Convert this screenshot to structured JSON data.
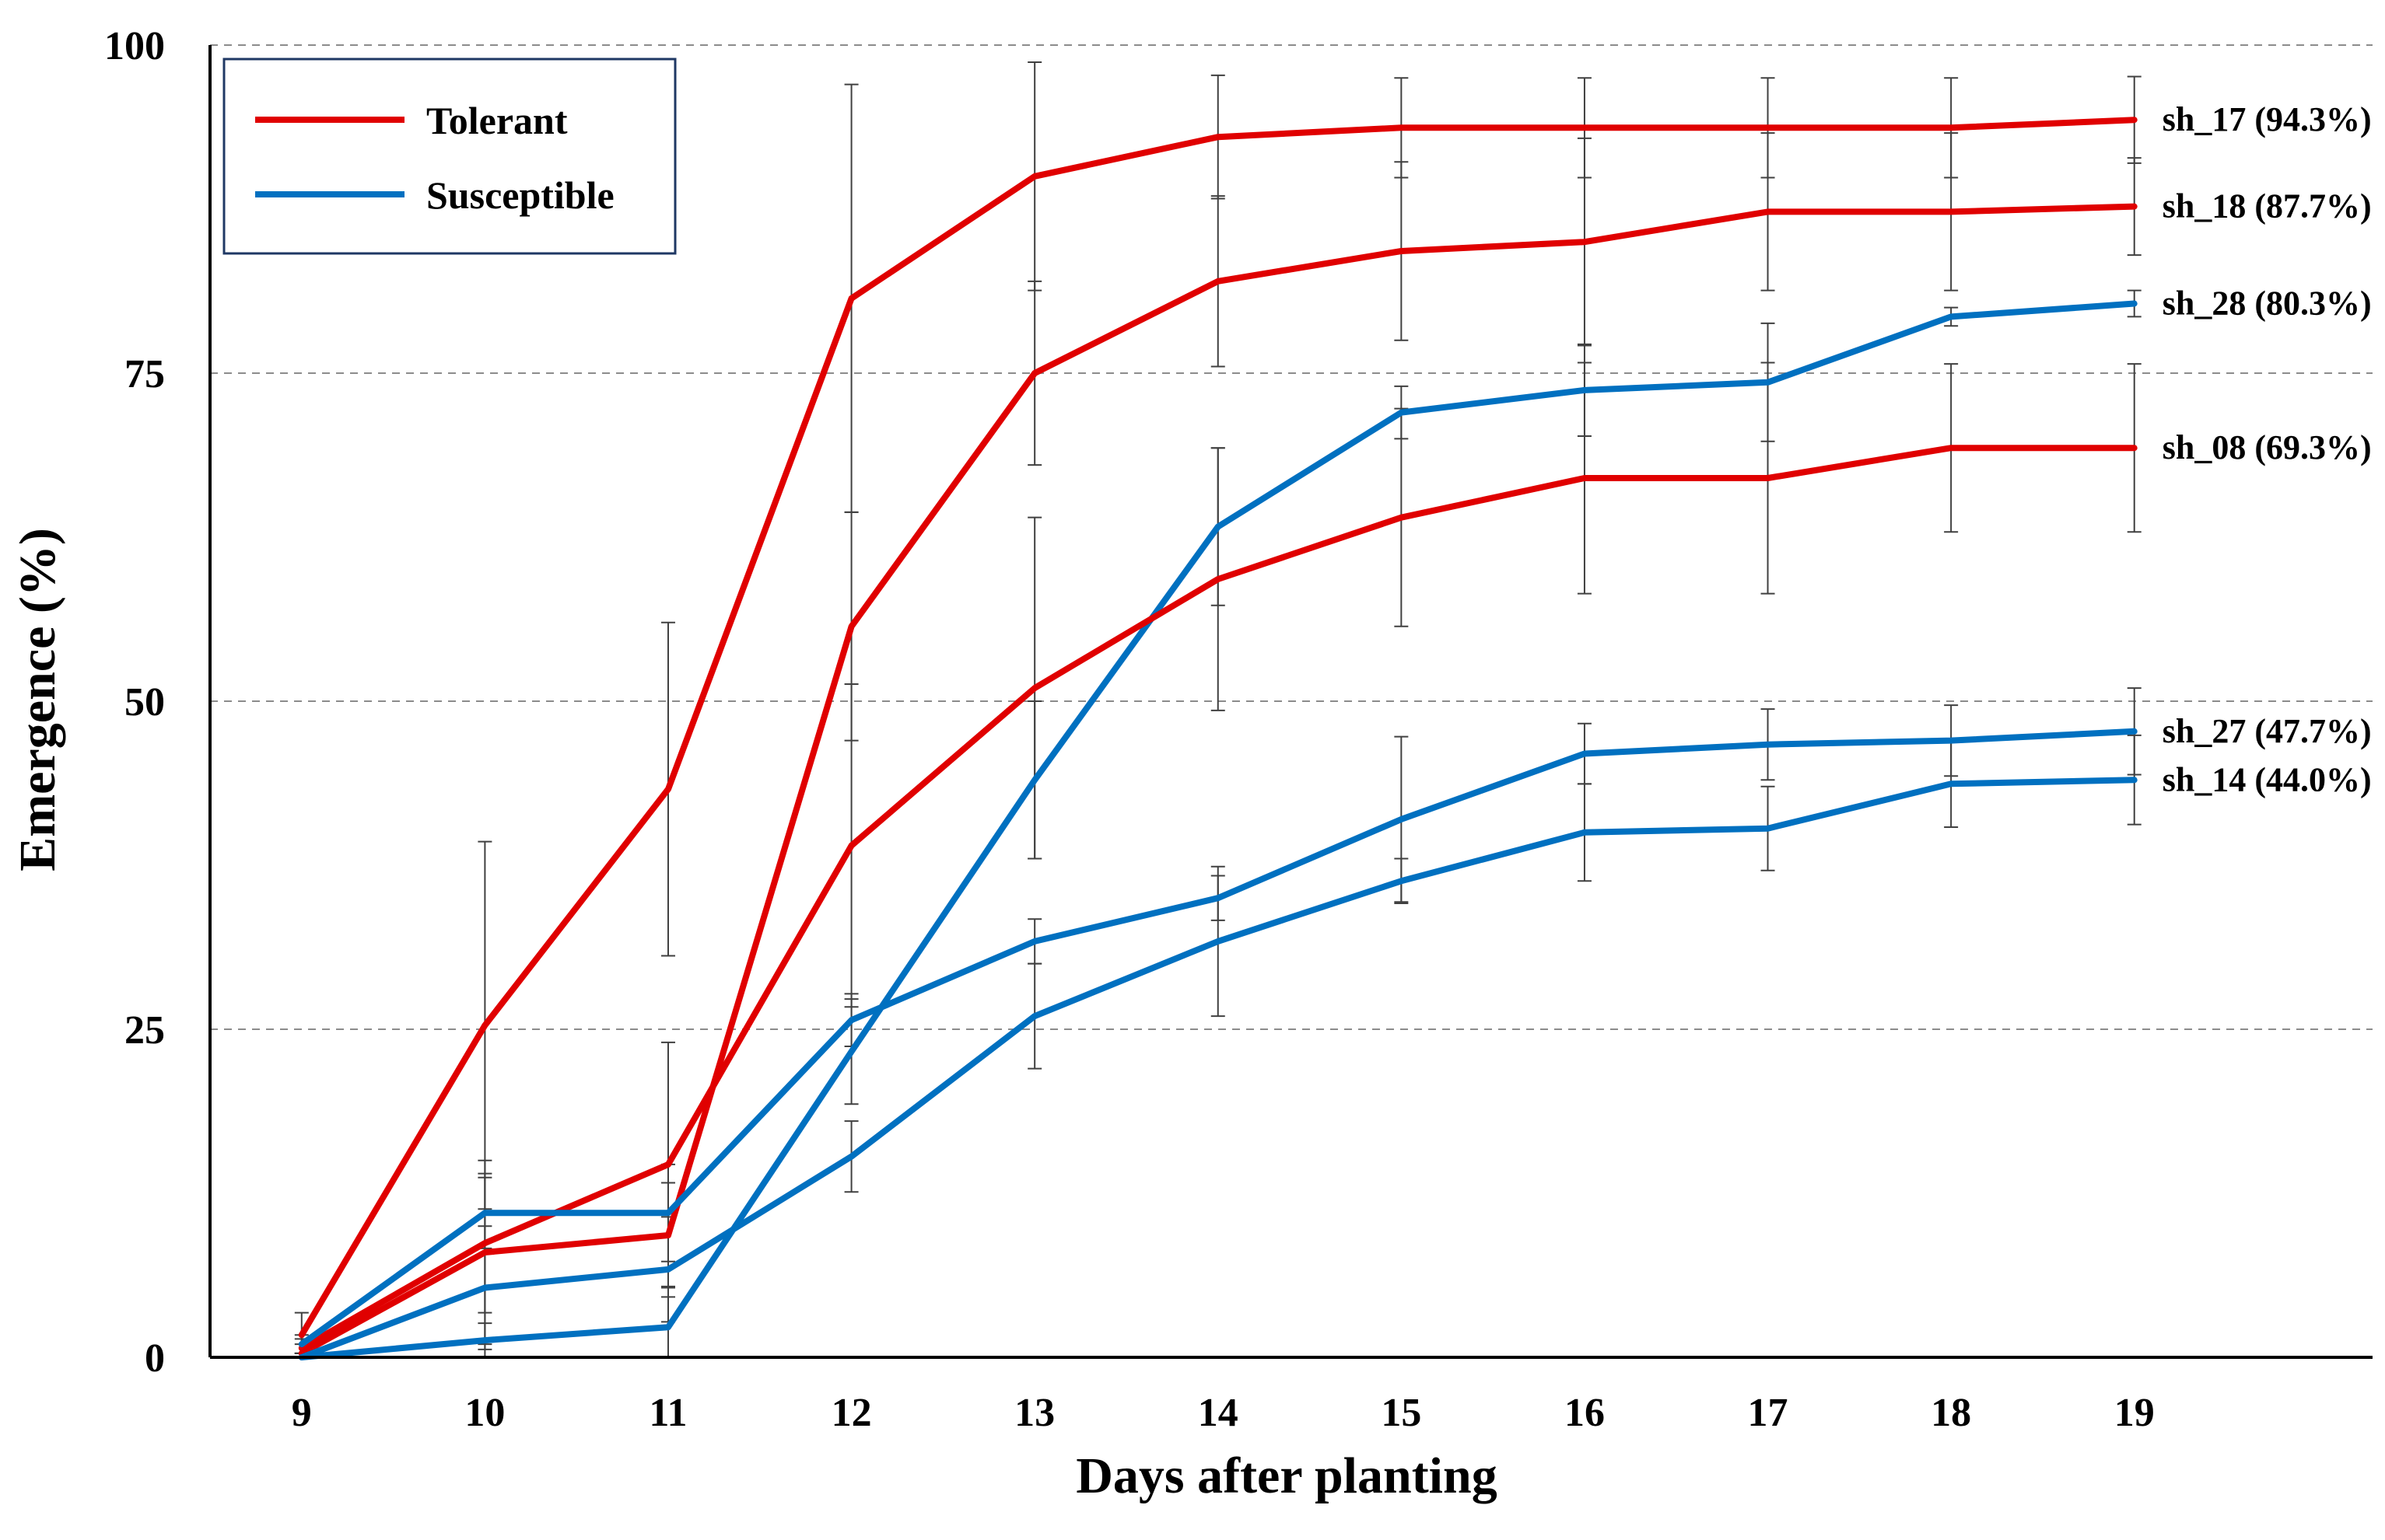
{
  "chart_data": {
    "type": "line",
    "title": "",
    "xlabel": "Days after planting",
    "ylabel": "Emergence (%)",
    "x": [
      9,
      10,
      11,
      12,
      13,
      14,
      15,
      16,
      17,
      18,
      19
    ],
    "x_tick_labels": [
      "9",
      "10",
      "11",
      "12",
      "13",
      "14",
      "15",
      "16",
      "17",
      "18",
      "19"
    ],
    "xlim": [
      8.5,
      20.3
    ],
    "ylim": [
      0,
      100
    ],
    "y_ticks": [
      0,
      25,
      50,
      75,
      100
    ],
    "y_tick_labels": [
      "0",
      "25",
      "50",
      "75",
      "100"
    ],
    "grid": "horizontal dashed",
    "legend_position": "top-left",
    "legend": [
      {
        "label": "Tolerant",
        "color": "#e00000"
      },
      {
        "label": "Susceptible",
        "color": "#0070c0"
      }
    ],
    "series": [
      {
        "name": "sh_17",
        "group": "Tolerant",
        "color": "#e00000",
        "end_label": "sh_17 (94.3%)",
        "values": [
          1.7,
          25.3,
          43.3,
          80.7,
          90.0,
          93.0,
          93.7,
          93.7,
          93.7,
          93.7,
          94.3
        ],
        "errors": [
          1.7,
          14.0,
          12.7,
          16.3,
          8.7,
          4.7,
          3.8,
          3.8,
          3.8,
          3.8,
          3.3
        ]
      },
      {
        "name": "sh_18",
        "group": "Tolerant",
        "color": "#e00000",
        "end_label": "sh_18 (87.7%)",
        "values": [
          0.3,
          8.0,
          9.3,
          55.7,
          75.0,
          82.0,
          84.3,
          85.0,
          87.3,
          87.3,
          87.7
        ],
        "errors": [
          0.7,
          7.0,
          4.0,
          8.7,
          7.0,
          6.5,
          6.8,
          7.9,
          6.0,
          6.0,
          3.7
        ]
      },
      {
        "name": "sh_28",
        "group": "Susceptible",
        "color": "#0070c0",
        "end_label": "sh_28 (80.3%)",
        "values": [
          0.0,
          1.3,
          2.3,
          23.3,
          44.0,
          63.3,
          72.0,
          73.7,
          74.3,
          79.3,
          80.3
        ],
        "errors": [
          0.3,
          1.3,
          2.3,
          4.0,
          6.0,
          6.0,
          2.0,
          3.5,
          4.5,
          0.7,
          1.0
        ]
      },
      {
        "name": "sh_08",
        "group": "Tolerant",
        "color": "#e00000",
        "end_label": "sh_08 (69.3%)",
        "values": [
          0.7,
          8.7,
          14.7,
          39.0,
          51.0,
          59.3,
          64.0,
          67.0,
          67.0,
          69.3,
          69.3
        ],
        "errors": [
          0.7,
          5.3,
          9.3,
          12.3,
          13.0,
          10.0,
          8.3,
          8.8,
          8.8,
          6.4,
          6.4
        ]
      },
      {
        "name": "sh_27",
        "group": "Susceptible",
        "color": "#0070c0",
        "end_label": "sh_27 (47.7%)",
        "values": [
          1.0,
          11.0,
          11.0,
          25.7,
          31.7,
          35.0,
          41.0,
          46.0,
          46.7,
          47.0,
          47.7
        ],
        "errors": [
          0.7,
          2.7,
          3.7,
          2.0,
          1.7,
          1.7,
          6.3,
          2.3,
          2.7,
          2.7,
          3.3
        ]
      },
      {
        "name": "sh_14",
        "group": "Susceptible",
        "color": "#0070c0",
        "end_label": "sh_14 (44.0%)",
        "values": [
          0.0,
          5.3,
          6.7,
          15.3,
          26.0,
          31.7,
          36.3,
          40.0,
          40.3,
          43.7,
          44.0
        ],
        "errors": [
          0.3,
          4.7,
          4.0,
          2.7,
          4.0,
          5.7,
          1.7,
          3.7,
          3.2,
          3.3,
          3.4
        ]
      }
    ]
  }
}
